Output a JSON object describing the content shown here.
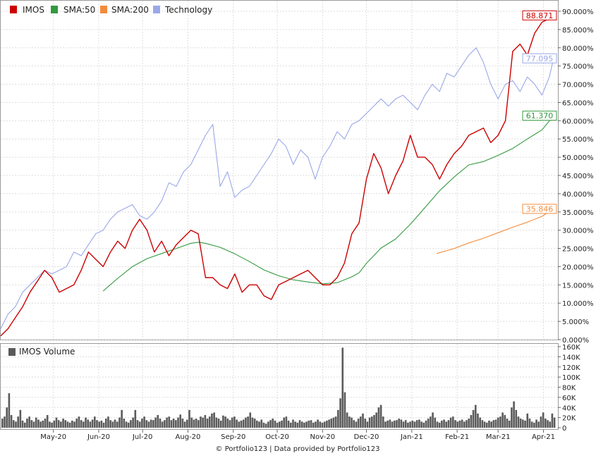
{
  "footer": "© Portfolio123 | Data provided by Portfolio123",
  "chart_data": [
    {
      "type": "line",
      "legend": [
        "IMOS",
        "SMA:50",
        "SMA:200",
        "Technology"
      ],
      "legend_position": "top-left",
      "ylim": [
        0,
        90
      ],
      "y_unit": "%",
      "y_ticks": [
        "0.000%",
        "5.000%",
        "10.000%",
        "15.000%",
        "20.000%",
        "25.000%",
        "30.000%",
        "35.000%",
        "40.000%",
        "45.000%",
        "50.000%",
        "55.000%",
        "60.000%",
        "65.000%",
        "70.000%",
        "75.000%",
        "80.000%",
        "85.000%",
        "90.000%"
      ],
      "x_ticks": [
        "May-20",
        "Jun-20",
        "Jul-20",
        "Aug-20",
        "Sep-20",
        "Oct-20",
        "Nov-20",
        "Dec-20",
        "Jan-21",
        "Feb-21",
        "Mar-21",
        "Apr-21"
      ],
      "x_tick_days": [
        36,
        67,
        97,
        128,
        159,
        189,
        220,
        250,
        281,
        312,
        340,
        371
      ],
      "day_range": [
        0,
        378
      ],
      "grid": true,
      "series": [
        {
          "name": "IMOS",
          "color": "#cc0000",
          "last_value": "88.871",
          "day": [
            0,
            5,
            10,
            15,
            20,
            25,
            30,
            35,
            40,
            45,
            50,
            55,
            60,
            65,
            70,
            75,
            80,
            85,
            90,
            95,
            100,
            105,
            110,
            115,
            120,
            125,
            130,
            135,
            140,
            145,
            150,
            155,
            160,
            165,
            170,
            175,
            180,
            185,
            190,
            195,
            200,
            205,
            210,
            215,
            220,
            225,
            230,
            235,
            240,
            245,
            250,
            255,
            260,
            265,
            270,
            275,
            280,
            285,
            290,
            295,
            300,
            305,
            310,
            315,
            320,
            325,
            330,
            335,
            340,
            345,
            350,
            355,
            360,
            365,
            370,
            375,
            378
          ],
          "values": [
            1,
            3,
            6,
            9,
            13,
            16,
            19,
            17,
            13,
            14,
            15,
            19,
            24,
            22,
            20,
            24,
            27,
            25,
            30,
            33,
            30,
            24,
            27,
            23,
            26,
            28,
            30,
            29,
            17,
            17,
            15,
            14,
            18,
            13,
            15,
            15,
            12,
            11,
            15,
            16,
            17,
            18,
            19,
            17,
            15,
            15,
            17,
            21,
            29,
            32,
            44,
            51,
            47,
            40,
            45,
            49,
            56,
            50,
            50,
            48,
            44,
            48,
            51,
            53,
            56,
            57,
            58,
            54,
            56,
            60,
            79,
            81,
            78,
            84,
            87,
            88,
            88.871
          ]
        },
        {
          "name": "SMA:50",
          "color": "#33993f",
          "last_value": "61.370",
          "day": [
            70,
            80,
            90,
            100,
            110,
            120,
            130,
            135,
            140,
            150,
            160,
            170,
            180,
            190,
            200,
            210,
            220,
            230,
            240,
            245,
            250,
            260,
            270,
            280,
            290,
            300,
            310,
            320,
            330,
            340,
            350,
            360,
            370,
            378
          ],
          "values": [
            13.3,
            16.8,
            20.0,
            22.2,
            23.6,
            25.0,
            26.4,
            26.7,
            26.4,
            25.3,
            23.5,
            21.4,
            19.1,
            17.5,
            16.4,
            15.8,
            15.3,
            15.6,
            17.2,
            18.3,
            20.9,
            25.1,
            27.6,
            31.6,
            36.2,
            40.8,
            44.6,
            47.9,
            48.8,
            50.5,
            52.4,
            55.0,
            57.5,
            61.37
          ]
        },
        {
          "name": "SMA:200",
          "color": "#f28c3c",
          "last_value": "35.846",
          "day": [
            298,
            310,
            320,
            330,
            340,
            350,
            360,
            370,
            378
          ],
          "values": [
            23.6,
            25.0,
            26.5,
            27.8,
            29.3,
            30.8,
            32.2,
            33.8,
            35.846
          ]
        },
        {
          "name": "Technology",
          "color": "#9aa8e8",
          "last_value": "77.095",
          "day": [
            0,
            5,
            10,
            15,
            20,
            25,
            30,
            35,
            40,
            45,
            50,
            55,
            60,
            65,
            70,
            75,
            80,
            85,
            90,
            95,
            100,
            105,
            110,
            115,
            120,
            125,
            130,
            135,
            140,
            145,
            150,
            155,
            160,
            165,
            170,
            175,
            180,
            185,
            190,
            195,
            200,
            205,
            210,
            215,
            220,
            225,
            230,
            235,
            240,
            245,
            250,
            255,
            260,
            265,
            270,
            275,
            280,
            285,
            290,
            295,
            300,
            305,
            310,
            315,
            320,
            325,
            330,
            335,
            340,
            345,
            350,
            355,
            360,
            365,
            370,
            375,
            378
          ],
          "values": [
            3,
            7,
            9,
            13,
            15,
            17,
            19,
            18,
            19,
            20,
            24,
            23,
            26,
            29,
            30,
            33,
            35,
            36,
            37,
            34,
            33,
            35,
            38,
            43,
            42,
            46,
            48,
            52,
            56,
            59,
            42,
            46,
            39,
            41,
            42,
            45,
            48,
            51,
            55,
            53,
            48,
            52,
            50,
            44,
            50,
            53,
            57,
            55,
            59,
            60,
            62,
            64,
            66,
            64,
            66,
            67,
            65,
            63,
            67,
            70,
            68,
            73,
            72,
            75,
            78,
            80,
            76,
            70,
            66,
            70,
            71,
            68,
            72,
            70,
            67,
            72,
            77.095
          ]
        }
      ]
    },
    {
      "type": "bar",
      "legend": [
        "IMOS Volume"
      ],
      "color": "#5a5a5a",
      "ylim": [
        0,
        160000
      ],
      "y_ticks": [
        "0",
        "20K",
        "40K",
        "60K",
        "80K",
        "100K",
        "120K",
        "140K",
        "160K"
      ],
      "values": [
        18000,
        22000,
        40000,
        68000,
        25000,
        15000,
        12000,
        22000,
        35000,
        14000,
        10000,
        18000,
        22000,
        15000,
        12000,
        20000,
        16000,
        12000,
        14000,
        18000,
        25000,
        12000,
        10000,
        14000,
        20000,
        15000,
        12000,
        18000,
        15000,
        12000,
        10000,
        14000,
        12000,
        18000,
        22000,
        15000,
        12000,
        20000,
        16000,
        12000,
        16000,
        22000,
        15000,
        12000,
        14000,
        10000,
        18000,
        22000,
        15000,
        12000,
        16000,
        12000,
        20000,
        35000,
        18000,
        12000,
        10000,
        15000,
        20000,
        35000,
        15000,
        12000,
        18000,
        22000,
        15000,
        12000,
        16000,
        15000,
        20000,
        25000,
        18000,
        12000,
        15000,
        20000,
        22000,
        15000,
        18000,
        15000,
        20000,
        26000,
        18000,
        12000,
        16000,
        35000,
        20000,
        16000,
        18000,
        15000,
        22000,
        20000,
        25000,
        18000,
        22000,
        28000,
        30000,
        20000,
        18000,
        14000,
        24000,
        22000,
        18000,
        15000,
        20000,
        22000,
        16000,
        12000,
        14000,
        16000,
        20000,
        22000,
        30000,
        20000,
        18000,
        14000,
        12000,
        16000,
        10000,
        8000,
        12000,
        15000,
        18000,
        14000,
        10000,
        12000,
        14000,
        20000,
        22000,
        14000,
        10000,
        16000,
        12000,
        10000,
        15000,
        12000,
        10000,
        12000,
        14000,
        15000,
        10000,
        12000,
        16000,
        12000,
        10000,
        12000,
        14000,
        16000,
        18000,
        20000,
        22000,
        35000,
        58000,
        158000,
        70000,
        30000,
        22000,
        20000,
        15000,
        12000,
        18000,
        22000,
        28000,
        18000,
        12000,
        20000,
        22000,
        25000,
        30000,
        40000,
        45000,
        22000,
        12000,
        14000,
        16000,
        12000,
        14000,
        15000,
        18000,
        16000,
        12000,
        15000,
        10000,
        12000,
        14000,
        12000,
        15000,
        16000,
        12000,
        10000,
        14000,
        18000,
        22000,
        30000,
        20000,
        12000,
        10000,
        14000,
        16000,
        12000,
        15000,
        20000,
        22000,
        15000,
        12000,
        14000,
        16000,
        12000,
        15000,
        18000,
        25000,
        35000,
        45000,
        28000,
        20000,
        15000,
        12000,
        10000,
        14000,
        12000,
        15000,
        16000,
        20000,
        22000,
        30000,
        25000,
        18000,
        14000,
        40000,
        52000,
        35000,
        22000,
        18000,
        16000,
        14000,
        28000,
        18000,
        12000,
        10000,
        16000,
        12000,
        22000,
        30000,
        18000,
        15000,
        12000,
        28000,
        20000
      ]
    }
  ]
}
